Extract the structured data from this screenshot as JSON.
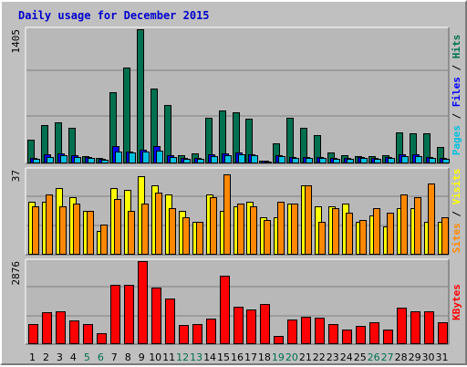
{
  "title": "Daily usage for December 2015",
  "colors": {
    "background": "#c0c0c0",
    "panel": "#b8b8b8",
    "title": "#0000cc",
    "hits": "#007050",
    "files": "#0000ff",
    "pages": "#00c0e0",
    "visits": "#ffff00",
    "sites": "#ff8800",
    "kbytes": "#ff0000",
    "weekend_label": "#007050",
    "weekday_label": "#000000"
  },
  "right_labels": {
    "pages": "Pages",
    "files": "Files",
    "hits": "Hits",
    "sites": "Sites",
    "visits": "Visits",
    "kbytes": "KBytes",
    "sep": " / "
  },
  "chart_data": [
    {
      "type": "bar",
      "panel": "hits-files-pages",
      "ymax_label": "1405",
      "ylim": [
        0,
        1405
      ],
      "categories": [
        "1",
        "2",
        "3",
        "4",
        "5",
        "6",
        "7",
        "8",
        "9",
        "10",
        "11",
        "12",
        "13",
        "14",
        "15",
        "16",
        "17",
        "18",
        "19",
        "20",
        "21",
        "22",
        "23",
        "24",
        "25",
        "26",
        "27",
        "28",
        "29",
        "30",
        "31"
      ],
      "weekend": [
        "5",
        "6",
        "12",
        "13",
        "19",
        "20",
        "26",
        "27"
      ],
      "series": [
        {
          "name": "Hits",
          "values": [
            245,
            395,
            420,
            365,
            65,
            45,
            745,
            1000,
            1405,
            780,
            610,
            80,
            95,
            475,
            550,
            525,
            465,
            20,
            205,
            470,
            370,
            285,
            105,
            80,
            70,
            65,
            80,
            315,
            310,
            305,
            165
          ]
        },
        {
          "name": "Files",
          "values": [
            45,
            85,
            95,
            75,
            55,
            35,
            170,
            120,
            130,
            170,
            80,
            50,
            45,
            90,
            95,
            105,
            90,
            15,
            80,
            60,
            55,
            55,
            45,
            50,
            60,
            50,
            60,
            85,
            85,
            60,
            45
          ]
        },
        {
          "name": "Pages",
          "values": [
            35,
            60,
            75,
            60,
            45,
            30,
            120,
            110,
            120,
            125,
            60,
            40,
            40,
            70,
            75,
            85,
            75,
            12,
            65,
            50,
            45,
            45,
            35,
            40,
            45,
            40,
            45,
            70,
            70,
            50,
            40
          ]
        }
      ]
    },
    {
      "type": "bar",
      "panel": "visits-sites",
      "ymax_label": "37",
      "ylim": [
        0,
        37
      ],
      "categories": [
        "1",
        "2",
        "3",
        "4",
        "5",
        "6",
        "7",
        "8",
        "9",
        "10",
        "11",
        "12",
        "13",
        "14",
        "15",
        "16",
        "17",
        "18",
        "19",
        "20",
        "21",
        "22",
        "23",
        "24",
        "25",
        "26",
        "27",
        "28",
        "29",
        "30",
        "31"
      ],
      "series": [
        {
          "name": "Visits",
          "values": [
            23,
            23,
            29,
            25,
            19,
            10,
            29,
            28,
            34,
            30,
            26,
            19,
            14,
            26,
            19,
            21,
            23,
            16,
            16,
            22,
            30,
            21,
            21,
            22,
            14,
            17,
            12,
            20,
            20,
            14,
            14
          ]
        },
        {
          "name": "Sites",
          "values": [
            21,
            26,
            21,
            22,
            19,
            13,
            24,
            19,
            22,
            27,
            20,
            16,
            14,
            25,
            35,
            22,
            21,
            15,
            23,
            22,
            30,
            14,
            20,
            18,
            15,
            20,
            18,
            26,
            25,
            31,
            16
          ]
        }
      ]
    },
    {
      "type": "bar",
      "panel": "kbytes",
      "ymax_label": "2876",
      "ylim": [
        0,
        2876
      ],
      "categories": [
        "1",
        "2",
        "3",
        "4",
        "5",
        "6",
        "7",
        "8",
        "9",
        "10",
        "11",
        "12",
        "13",
        "14",
        "15",
        "16",
        "17",
        "18",
        "19",
        "20",
        "21",
        "22",
        "23",
        "24",
        "25",
        "26",
        "27",
        "28",
        "29",
        "30",
        "31"
      ],
      "series": [
        {
          "name": "KBytes",
          "values": [
            660,
            1080,
            1130,
            790,
            680,
            350,
            2050,
            2050,
            2876,
            1950,
            1550,
            650,
            680,
            850,
            2380,
            1290,
            1190,
            1390,
            250,
            830,
            920,
            880,
            680,
            480,
            620,
            740,
            480,
            1250,
            1120,
            1110,
            720
          ]
        }
      ]
    }
  ]
}
